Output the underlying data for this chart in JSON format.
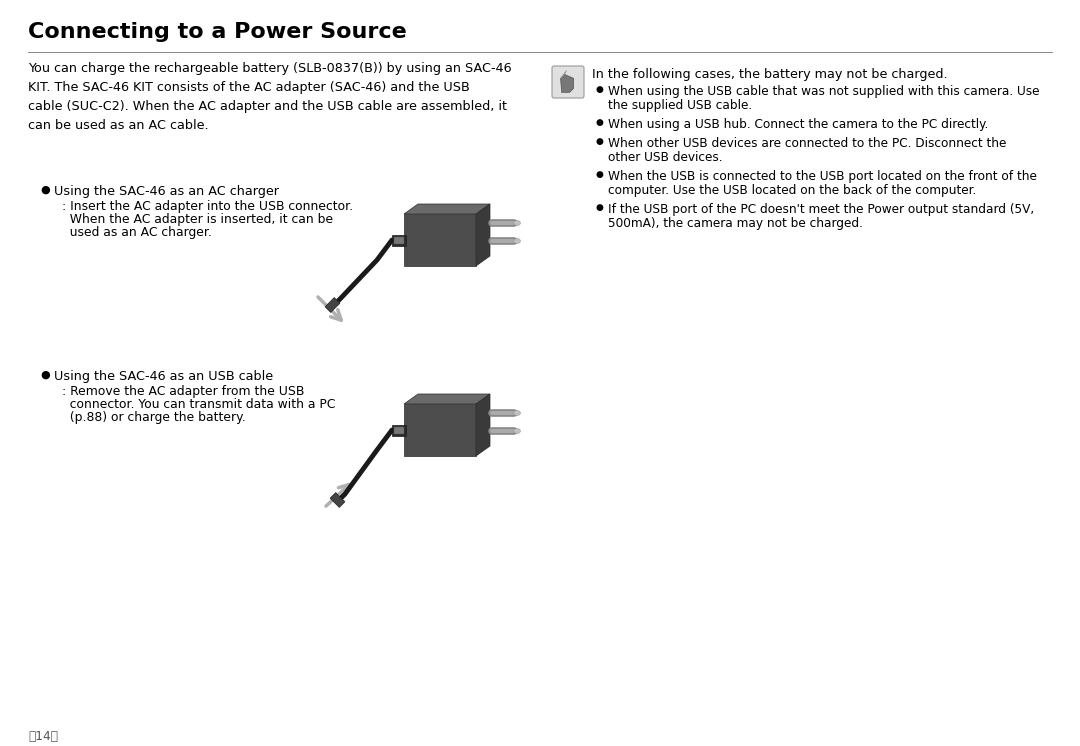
{
  "title": "Connecting to a Power Source",
  "bg_color": "#ffffff",
  "text_color": "#000000",
  "title_fontsize": 16,
  "body_fontsize": 9.2,
  "page_number": "〔14〕",
  "intro_text": "You can charge the rechargeable battery (SLB-0837(B)) by using an SAC-46\nKIT. The SAC-46 KIT consists of the AC adapter (SAC-46) and the USB\ncable (SUC-C2). When the AC adapter and the USB cable are assembled, it\ncan be used as an AC cable.",
  "note_title": "In the following cases, the battery may not be charged.",
  "note_bullets": [
    "When using the USB cable that was not supplied with this camera. Use\nthe supplied USB cable.",
    "When using a USB hub. Connect the camera to the PC directly.",
    "When other USB devices are connected to the PC. Disconnect the\nother USB devices.",
    "When the USB is connected to the USB port located on the front of the\ncomputer. Use the USB located on the back of the computer.",
    "If the USB port of the PC doesn't meet the Power output standard (5V,\n500mA), the camera may not be charged."
  ],
  "section1_bullet": "Using the SAC-46 as an AC charger",
  "section1_sub": ": Insert the AC adapter into the USB connector.",
  "section1_sub2": "  When the AC adapter is inserted, it can be",
  "section1_sub3": "  used as an AC charger.",
  "section2_bullet": "Using the SAC-46 as an USB cable",
  "section2_sub": ": Remove the AC adapter from the USB",
  "section2_sub2": "  connector. You can transmit data with a PC",
  "section2_sub3": "  (p.88) or charge the battery.",
  "divider_color": "#888888",
  "bullet_color": "#000000",
  "adapter_body": "#555555",
  "adapter_dark": "#333333",
  "adapter_light": "#888888",
  "adapter_port": "#666666",
  "cable_color": "#1a1a1a",
  "arrow_color": "#aaaaaa",
  "icon_bg": "#e0e0e0",
  "icon_border": "#999999"
}
